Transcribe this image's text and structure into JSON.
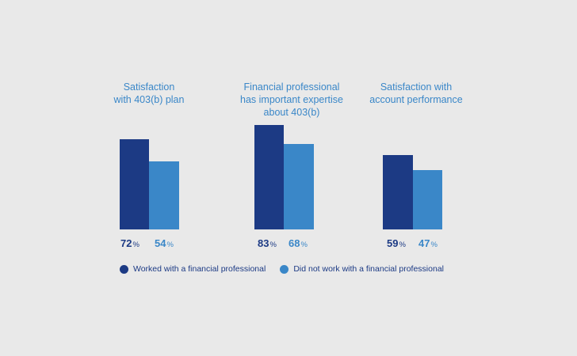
{
  "colors": {
    "background": "#e9e9e9",
    "worked": "#1c3a84",
    "did_not": "#3a87c8",
    "title": "#3a87c8"
  },
  "chart_data": {
    "type": "bar",
    "title": "",
    "categories": [
      "Satisfaction with 403(b) plan",
      "Financial professional has important expertise about 403(b)",
      "Satisfaction with account performance"
    ],
    "series": [
      {
        "name": "Worked with a financial professional",
        "values": [
          72,
          83,
          59
        ],
        "color": "#1c3a84"
      },
      {
        "name": "Did not work with a financial professional",
        "values": [
          54,
          68,
          47
        ],
        "color": "#3a87c8"
      }
    ],
    "xlabel": "",
    "ylabel": "",
    "ylim": [
      0,
      100
    ],
    "unit": "%",
    "grid": false,
    "legend_position": "bottom"
  },
  "groups": [
    {
      "title": "Satisfaction\nwith 403(b) plan",
      "worked_label": "72",
      "did_not_label": "54",
      "pct_symbol": "%"
    },
    {
      "title": "Financial professional\nhas important expertise\nabout 403(b)",
      "worked_label": "83",
      "did_not_label": "68",
      "pct_symbol": "%"
    },
    {
      "title": "Satisfaction with\naccount performance",
      "worked_label": "59",
      "did_not_label": "47",
      "pct_symbol": "%"
    }
  ],
  "legend": {
    "items": [
      {
        "label": "Worked with a financial professional"
      },
      {
        "label": "Did not work with a financial professional"
      }
    ]
  }
}
